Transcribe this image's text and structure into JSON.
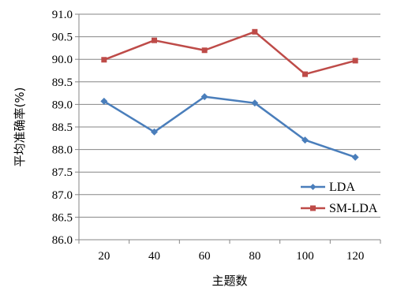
{
  "chart_data": {
    "type": "line",
    "xlabel": "主题数",
    "ylabel": "平均准确率(%)",
    "categories": [
      "20",
      "40",
      "60",
      "80",
      "100",
      "120"
    ],
    "ylim": [
      86.0,
      91.0
    ],
    "yticks": [
      "86.0",
      "86.5",
      "87.0",
      "87.5",
      "88.0",
      "88.5",
      "89.0",
      "89.5",
      "90.0",
      "90.5",
      "91.0"
    ],
    "grid": true,
    "legend_position": "bottom-right",
    "series": [
      {
        "name": "LDA",
        "color": "#4a7ebb",
        "marker": "diamond",
        "values": [
          89.07,
          88.39,
          89.17,
          89.03,
          88.21,
          87.83
        ]
      },
      {
        "name": "SM-LDA",
        "color": "#be4b48",
        "marker": "square",
        "values": [
          89.99,
          90.42,
          90.2,
          90.61,
          89.67,
          89.97
        ]
      }
    ]
  }
}
